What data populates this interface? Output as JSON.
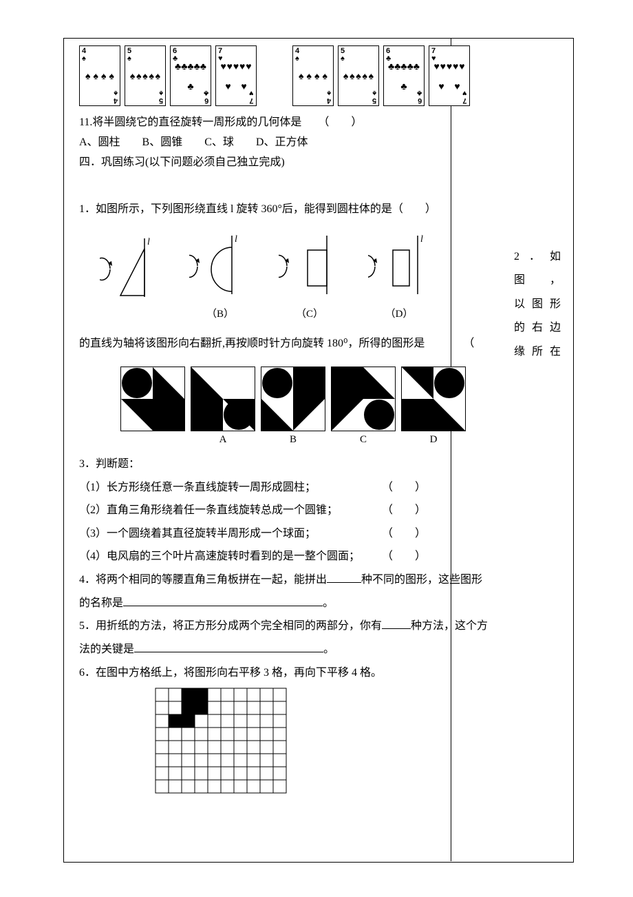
{
  "cards": {
    "spade": "♠",
    "heart": "♥",
    "club": "♣",
    "set": [
      {
        "rank": "4",
        "suit": "♠",
        "count": 4
      },
      {
        "rank": "5",
        "suit": "♠",
        "count": 5
      },
      {
        "rank": "6",
        "suit": "♣",
        "count": 6
      },
      {
        "rank": "7",
        "suit": "♥",
        "count": 7
      }
    ]
  },
  "q11": {
    "text": "11.将半圆绕它的直径旋转一周形成的几何体是　　（　　）",
    "options": "A、圆柱　　B、圆锥　　C、球　　D、正方体"
  },
  "section4": "四．巩固练习(以下问题必须自己独立完成)",
  "q1": {
    "text": "1．如图所示，下列图形绕直线 l 旋转 360°后，能得到圆柱体的是（　　）",
    "labels": {
      "b": "（B）",
      "c": "（C）",
      "d": "（D）"
    },
    "l": "l"
  },
  "q2": {
    "side1": "2．如图，",
    "side2": "以 图 形",
    "side3": "的 右 边",
    "side4": "缘 所 在",
    "cont": "的直线为轴将该图形向右翻折,再按顺时针方向旋转 180⁰，所得的图形是　　　　（",
    "labels": {
      "a": "A",
      "b": "B",
      "c": "C",
      "d": "D"
    }
  },
  "q3": {
    "title": "3．判断题：",
    "items": [
      "（1）长方形绕任意一条直线旋转一周形成圆柱；",
      "（2）直角三角形绕着任一条直线旋转总成一个圆锥；",
      "（3）一个圆绕着其直径旋转半周形成一个球面；",
      "（4）电风扇的三个叶片高速旋转时看到的是一整个圆面；"
    ],
    "paren": "（　　）"
  },
  "q4": {
    "a": "4．将两个相同的等腰直角三角板拼在一起，能拼出",
    "b": "种不同的图形，这些图形",
    "c": "的名称是",
    "d": "。"
  },
  "q5": {
    "a": "5．用折纸的方法，将正方形分成两个完全相同的两部分，你有",
    "b": "种方法，这个方",
    "c": "法的关键是",
    "d": "。"
  },
  "q6": "6．在图中方格纸上，将图形向右平移 3 格，再向下平移 4 格。",
  "grid": {
    "cols": 10,
    "rows": 8,
    "cell": 19,
    "filled": [
      [
        2,
        0
      ],
      [
        3,
        0
      ],
      [
        2,
        1
      ],
      [
        3,
        1
      ],
      [
        1,
        2
      ],
      [
        2,
        2
      ]
    ]
  },
  "colors": {
    "black": "#000000",
    "white": "#ffffff"
  }
}
